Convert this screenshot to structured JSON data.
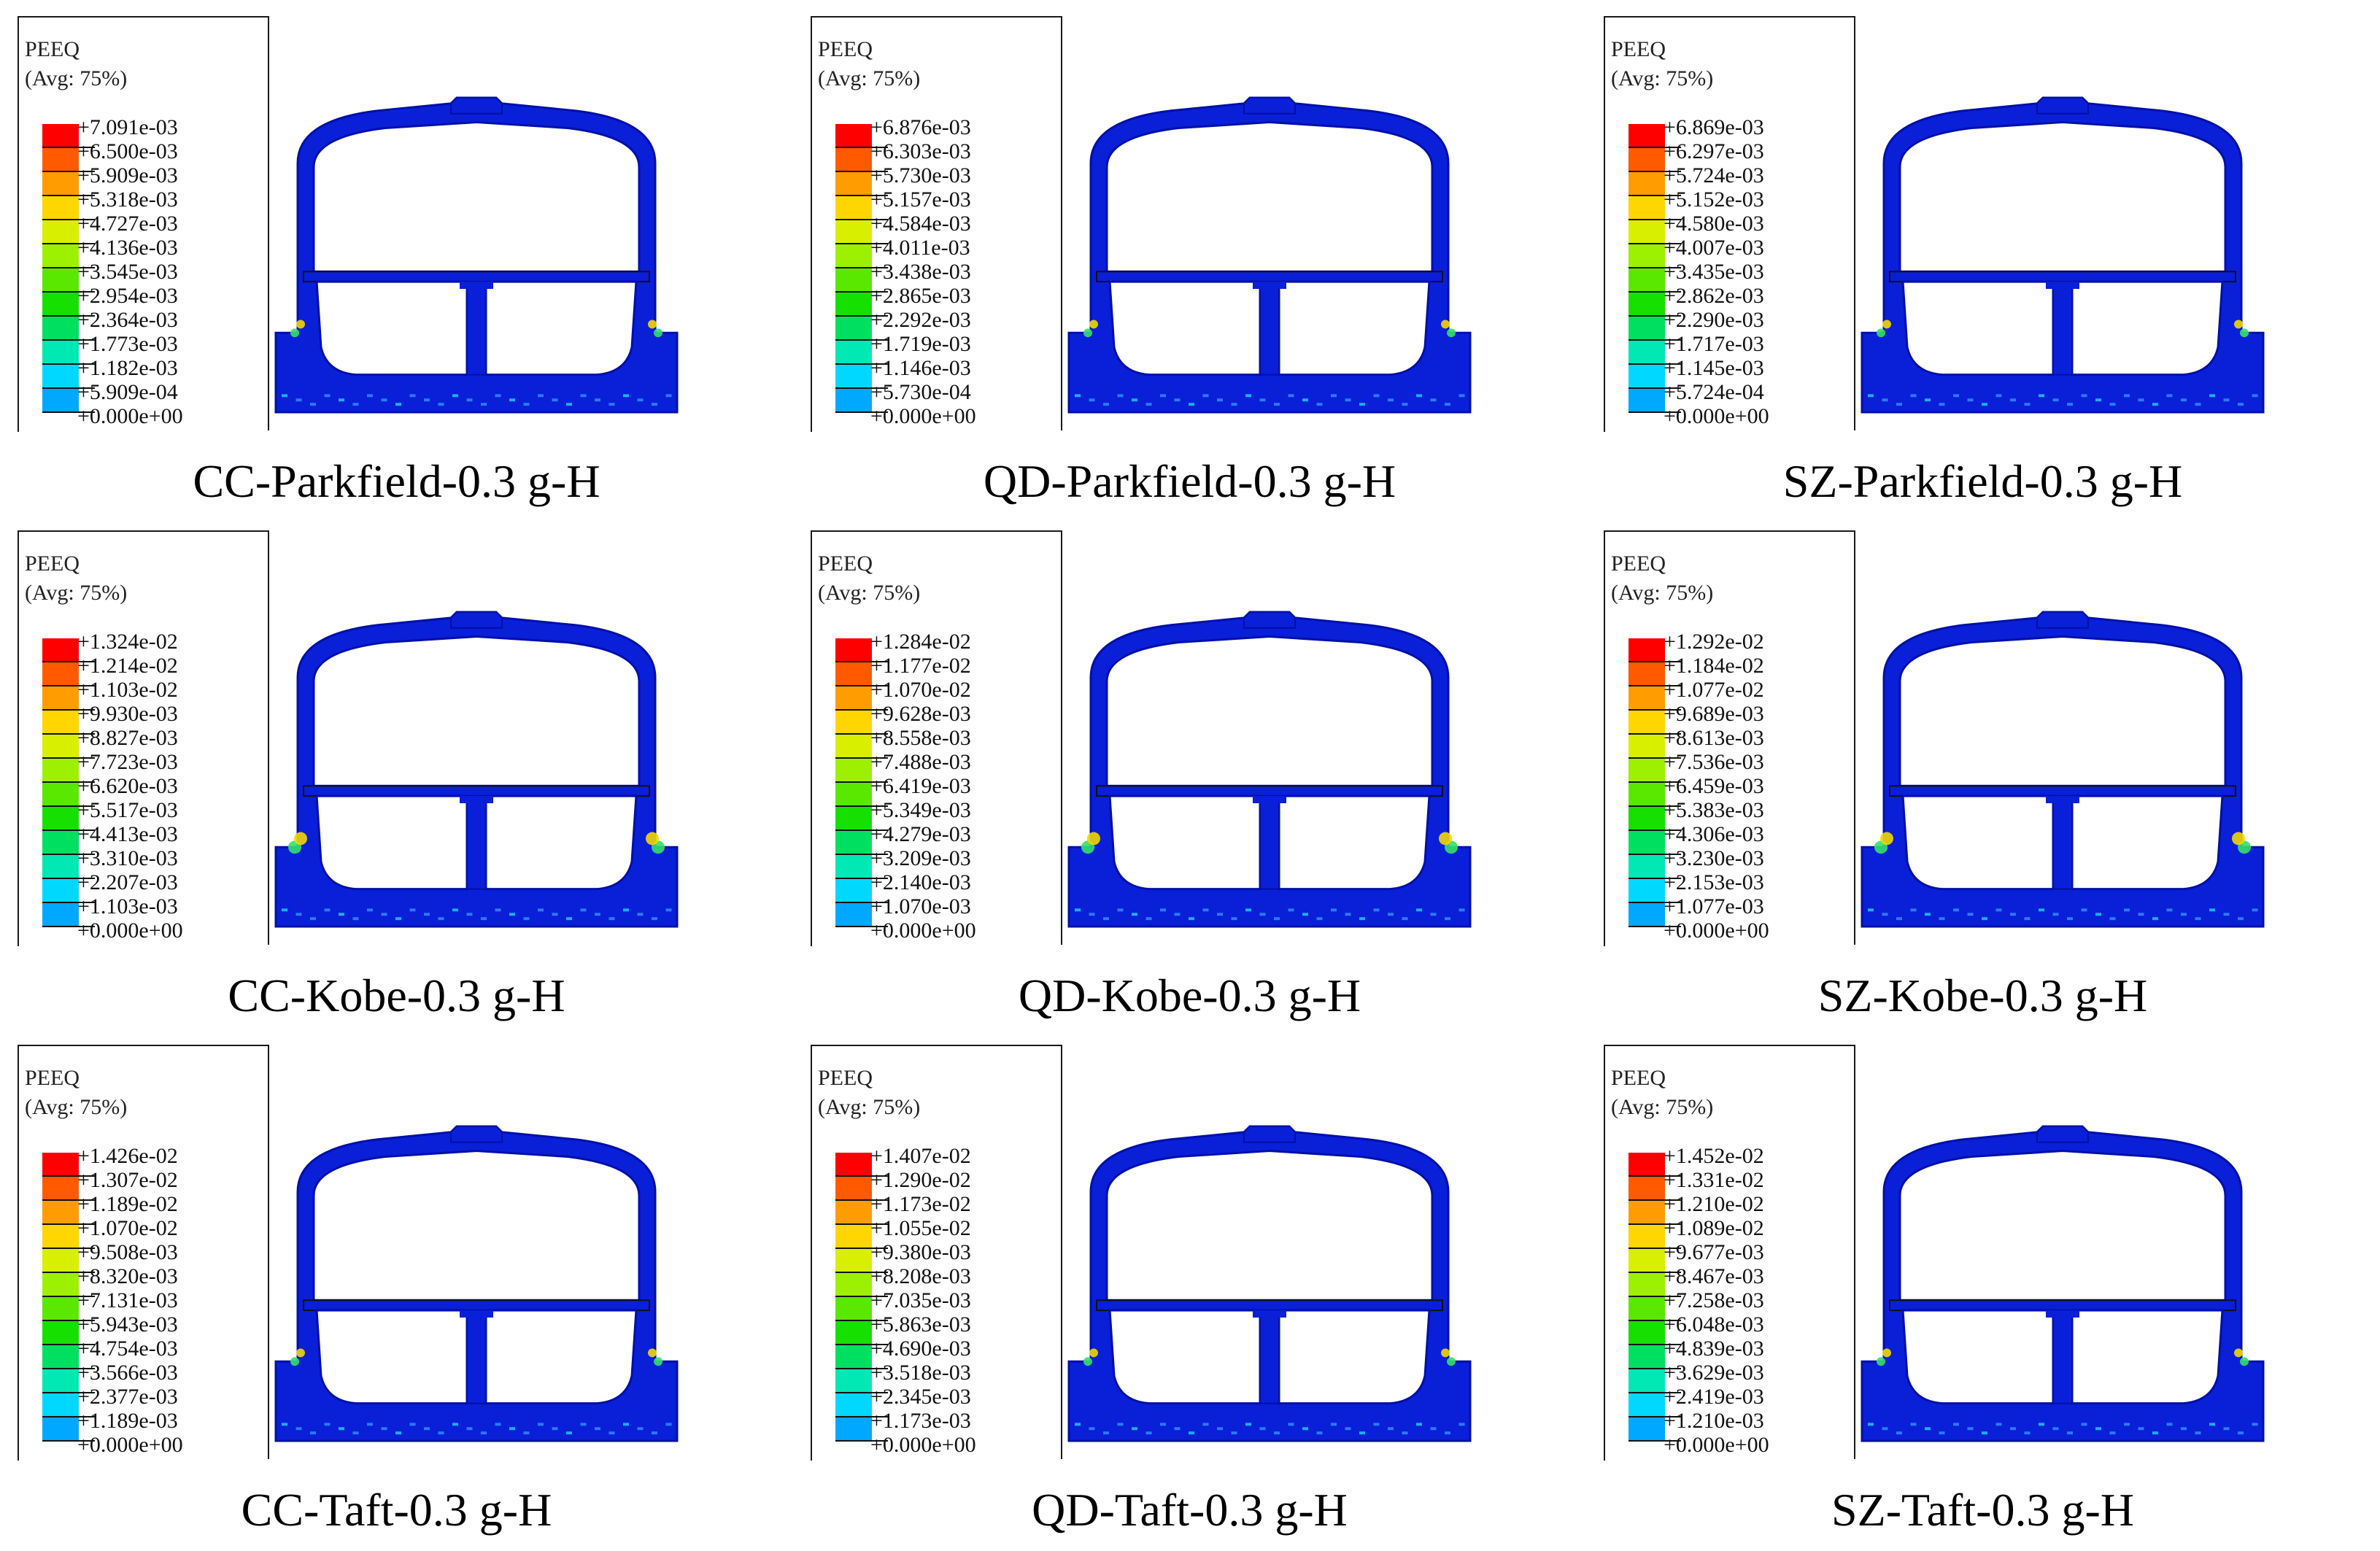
{
  "legend_title": "PEEQ",
  "legend_subtitle": "(Avg: 75%)",
  "colors": {
    "structure": "#0a1fd8",
    "structure_dark": "#0010a8",
    "stripe": "#2a7bff",
    "contour_scale": [
      "#ff0000",
      "#ff5a00",
      "#ff9d00",
      "#ffd600",
      "#d8f000",
      "#9cf000",
      "#5ae800",
      "#16e000",
      "#00e060",
      "#00e8b4",
      "#00d8ff",
      "#00a8ff",
      "#0064ff",
      "#0018ff"
    ]
  },
  "panels": [
    {
      "caption": "CC-Parkfield-0.3 g-H",
      "labels": [
        "+7.091e-03",
        "+6.500e-03",
        "+5.909e-03",
        "+5.318e-03",
        "+4.727e-03",
        "+4.136e-03",
        "+3.545e-03",
        "+2.954e-03",
        "+2.364e-03",
        "+1.773e-03",
        "+1.182e-03",
        "+5.909e-04",
        "+0.000e+00"
      ]
    },
    {
      "caption": "QD-Parkfield-0.3 g-H",
      "labels": [
        "+6.876e-03",
        "+6.303e-03",
        "+5.730e-03",
        "+5.157e-03",
        "+4.584e-03",
        "+4.011e-03",
        "+3.438e-03",
        "+2.865e-03",
        "+2.292e-03",
        "+1.719e-03",
        "+1.146e-03",
        "+5.730e-04",
        "+0.000e+00"
      ]
    },
    {
      "caption": "SZ-Parkfield-0.3 g-H",
      "labels": [
        "+6.869e-03",
        "+6.297e-03",
        "+5.724e-03",
        "+5.152e-03",
        "+4.580e-03",
        "+4.007e-03",
        "+3.435e-03",
        "+2.862e-03",
        "+2.290e-03",
        "+1.717e-03",
        "+1.145e-03",
        "+5.724e-04",
        "+0.000e+00"
      ]
    },
    {
      "caption": "CC-Kobe-0.3 g-H",
      "labels": [
        "+1.324e-02",
        "+1.214e-02",
        "+1.103e-02",
        "+9.930e-03",
        "+8.827e-03",
        "+7.723e-03",
        "+6.620e-03",
        "+5.517e-03",
        "+4.413e-03",
        "+3.310e-03",
        "+2.207e-03",
        "+1.103e-03",
        "+0.000e+00"
      ]
    },
    {
      "caption": "QD-Kobe-0.3 g-H",
      "labels": [
        "+1.284e-02",
        "+1.177e-02",
        "+1.070e-02",
        "+9.628e-03",
        "+8.558e-03",
        "+7.488e-03",
        "+6.419e-03",
        "+5.349e-03",
        "+4.279e-03",
        "+3.209e-03",
        "+2.140e-03",
        "+1.070e-03",
        "+0.000e+00"
      ]
    },
    {
      "caption": "SZ-Kobe-0.3 g-H",
      "labels": [
        "+1.292e-02",
        "+1.184e-02",
        "+1.077e-02",
        "+9.689e-03",
        "+8.613e-03",
        "+7.536e-03",
        "+6.459e-03",
        "+5.383e-03",
        "+4.306e-03",
        "+3.230e-03",
        "+2.153e-03",
        "+1.077e-03",
        "+0.000e+00"
      ]
    },
    {
      "caption": "CC-Taft-0.3 g-H",
      "labels": [
        "+1.426e-02",
        "+1.307e-02",
        "+1.189e-02",
        "+1.070e-02",
        "+9.508e-03",
        "+8.320e-03",
        "+7.131e-03",
        "+5.943e-03",
        "+4.754e-03",
        "+3.566e-03",
        "+2.377e-03",
        "+1.189e-03",
        "+0.000e+00"
      ]
    },
    {
      "caption": "QD-Taft-0.3 g-H",
      "labels": [
        "+1.407e-02",
        "+1.290e-02",
        "+1.173e-02",
        "+1.055e-02",
        "+9.380e-03",
        "+8.208e-03",
        "+7.035e-03",
        "+5.863e-03",
        "+4.690e-03",
        "+3.518e-03",
        "+2.345e-03",
        "+1.173e-03",
        "+0.000e+00"
      ]
    },
    {
      "caption": "SZ-Taft-0.3 g-H",
      "labels": [
        "+1.452e-02",
        "+1.331e-02",
        "+1.210e-02",
        "+1.089e-02",
        "+9.677e-03",
        "+8.467e-03",
        "+7.258e-03",
        "+6.048e-03",
        "+4.839e-03",
        "+3.629e-03",
        "+2.419e-03",
        "+1.210e-03",
        "+0.000e+00"
      ]
    }
  ]
}
